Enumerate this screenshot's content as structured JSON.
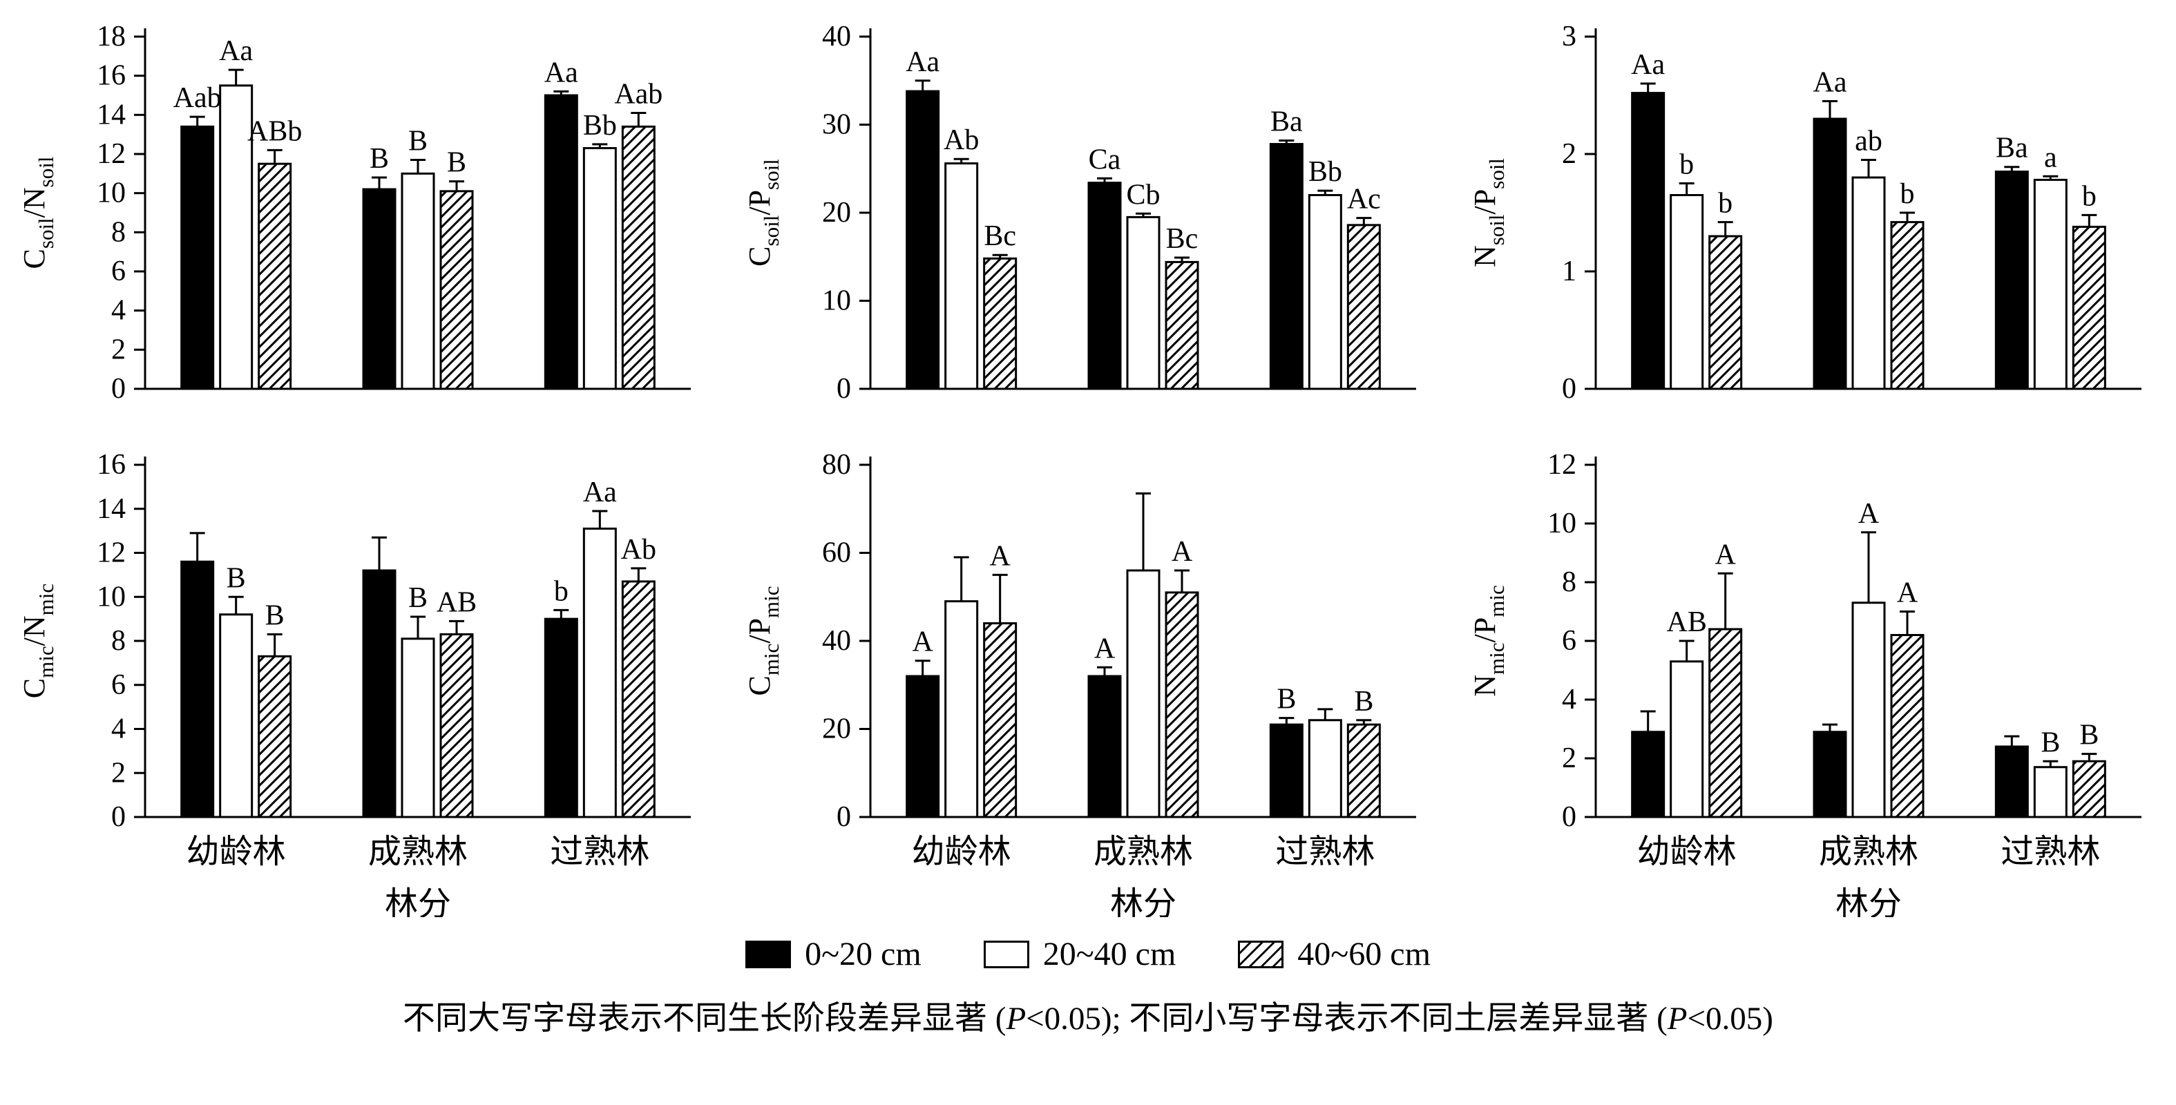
{
  "page": {
    "background": "#ffffff",
    "ink": "#000000"
  },
  "legend": {
    "items": [
      {
        "label": "0~20 cm",
        "style": "solid"
      },
      {
        "label": "20~40 cm",
        "style": "open"
      },
      {
        "label": "40~60 cm",
        "style": "hatch"
      }
    ]
  },
  "footnote": {
    "segments": [
      {
        "text": "不同大写字母表示不同生长阶段差异显著 ("
      },
      {
        "text": "P",
        "italic": true
      },
      {
        "text": "<0.05); 不同小写字母表示不同土层差异显著 ("
      },
      {
        "text": "P",
        "italic": true
      },
      {
        "text": "<0.05)"
      }
    ]
  },
  "chart_data": [
    {
      "type": "bar",
      "ylabel": "C_soil/N_soil",
      "ylim": [
        0,
        18
      ],
      "ytick_step": 2,
      "show_x_labels": false,
      "xlabel": "",
      "categories": [
        "幼龄林",
        "成熟林",
        "过熟林"
      ],
      "series": [
        {
          "name": "0~20 cm",
          "style": "solid",
          "values": [
            13.4,
            10.2,
            15.0
          ],
          "errors": [
            0.5,
            0.6,
            0.2
          ],
          "sig_labels": [
            "Aab",
            "B",
            "Aa"
          ]
        },
        {
          "name": "20~40 cm",
          "style": "open",
          "values": [
            15.5,
            11.0,
            12.3
          ],
          "errors": [
            0.8,
            0.7,
            0.2
          ],
          "sig_labels": [
            "Aa",
            "B",
            "Bb"
          ]
        },
        {
          "name": "40~60 cm",
          "style": "hatch",
          "values": [
            11.5,
            10.1,
            13.4
          ],
          "errors": [
            0.7,
            0.5,
            0.7
          ],
          "sig_labels": [
            "ABb",
            "B",
            "Aab"
          ]
        }
      ]
    },
    {
      "type": "bar",
      "ylabel": "C_soil/P_soil",
      "ylim": [
        0,
        40
      ],
      "ytick_step": 10,
      "show_x_labels": false,
      "xlabel": "",
      "categories": [
        "幼龄林",
        "成熟林",
        "过熟林"
      ],
      "series": [
        {
          "name": "0~20 cm",
          "style": "solid",
          "values": [
            33.8,
            23.4,
            27.8
          ],
          "errors": [
            1.2,
            0.5,
            0.4
          ],
          "sig_labels": [
            "Aa",
            "Ca",
            "Ba"
          ]
        },
        {
          "name": "20~40 cm",
          "style": "open",
          "values": [
            25.6,
            19.5,
            22.0
          ],
          "errors": [
            0.5,
            0.4,
            0.5
          ],
          "sig_labels": [
            "Ab",
            "Cb",
            "Bb"
          ]
        },
        {
          "name": "40~60 cm",
          "style": "hatch",
          "values": [
            14.8,
            14.4,
            18.6
          ],
          "errors": [
            0.4,
            0.5,
            0.8
          ],
          "sig_labels": [
            "Bc",
            "Bc",
            "Ac"
          ]
        }
      ]
    },
    {
      "type": "bar",
      "ylabel": "N_soil/P_soil",
      "ylim": [
        0,
        3
      ],
      "ytick_step": 1,
      "show_x_labels": false,
      "xlabel": "",
      "categories": [
        "幼龄林",
        "成熟林",
        "过熟林"
      ],
      "series": [
        {
          "name": "0~20 cm",
          "style": "solid",
          "values": [
            2.52,
            2.3,
            1.85
          ],
          "errors": [
            0.08,
            0.15,
            0.04
          ],
          "sig_labels": [
            "Aa",
            "Aa",
            "Ba"
          ]
        },
        {
          "name": "20~40 cm",
          "style": "open",
          "values": [
            1.65,
            1.8,
            1.78
          ],
          "errors": [
            0.1,
            0.15,
            0.03
          ],
          "sig_labels": [
            "b",
            "ab",
            "a"
          ]
        },
        {
          "name": "40~60 cm",
          "style": "hatch",
          "values": [
            1.3,
            1.42,
            1.38
          ],
          "errors": [
            0.12,
            0.08,
            0.1
          ],
          "sig_labels": [
            "b",
            "b",
            "b"
          ]
        }
      ]
    },
    {
      "type": "bar",
      "ylabel": "C_mic/N_mic",
      "ylim": [
        0,
        16
      ],
      "ytick_step": 2,
      "show_x_labels": true,
      "xlabel": "林分",
      "categories": [
        "幼龄林",
        "成熟林",
        "过熟林"
      ],
      "series": [
        {
          "name": "0~20 cm",
          "style": "solid",
          "values": [
            11.6,
            11.2,
            9.0
          ],
          "errors": [
            1.3,
            1.5,
            0.4
          ],
          "sig_labels": [
            "",
            "",
            "b"
          ]
        },
        {
          "name": "20~40 cm",
          "style": "open",
          "values": [
            9.2,
            8.1,
            13.1
          ],
          "errors": [
            0.8,
            1.0,
            0.8
          ],
          "sig_labels": [
            "B",
            "B",
            "Aa"
          ]
        },
        {
          "name": "40~60 cm",
          "style": "hatch",
          "values": [
            7.3,
            8.3,
            10.7
          ],
          "errors": [
            1.0,
            0.6,
            0.6
          ],
          "sig_labels": [
            "B",
            "AB",
            "Ab"
          ]
        }
      ]
    },
    {
      "type": "bar",
      "ylabel": "C_mic/P_mic",
      "ylim": [
        0,
        80
      ],
      "ytick_step": 20,
      "show_x_labels": true,
      "xlabel": "林分",
      "categories": [
        "幼龄林",
        "成熟林",
        "过熟林"
      ],
      "series": [
        {
          "name": "0~20 cm",
          "style": "solid",
          "values": [
            32,
            32,
            21
          ],
          "errors": [
            3.5,
            2.0,
            1.5
          ],
          "sig_labels": [
            "A",
            "A",
            "B"
          ]
        },
        {
          "name": "20~40 cm",
          "style": "open",
          "values": [
            49,
            56,
            22
          ],
          "errors": [
            10.0,
            17.5,
            2.5
          ],
          "sig_labels": [
            "",
            "",
            ""
          ]
        },
        {
          "name": "40~60 cm",
          "style": "hatch",
          "values": [
            44,
            51,
            21
          ],
          "errors": [
            11.0,
            5.0,
            1.0
          ],
          "sig_labels": [
            "A",
            "A",
            "B"
          ]
        }
      ]
    },
    {
      "type": "bar",
      "ylabel": "N_mic/P_mic",
      "ylim": [
        0,
        12
      ],
      "ytick_step": 2,
      "show_x_labels": true,
      "xlabel": "林分",
      "categories": [
        "幼龄林",
        "成熟林",
        "过熟林"
      ],
      "series": [
        {
          "name": "0~20 cm",
          "style": "solid",
          "values": [
            2.9,
            2.9,
            2.4
          ],
          "errors": [
            0.7,
            0.25,
            0.35
          ],
          "sig_labels": [
            "",
            "",
            ""
          ]
        },
        {
          "name": "20~40 cm",
          "style": "open",
          "values": [
            5.3,
            7.3,
            1.7
          ],
          "errors": [
            0.7,
            2.4,
            0.2
          ],
          "sig_labels": [
            "AB",
            "A",
            "B"
          ]
        },
        {
          "name": "40~60 cm",
          "style": "hatch",
          "values": [
            6.4,
            6.2,
            1.9
          ],
          "errors": [
            1.9,
            0.8,
            0.25
          ],
          "sig_labels": [
            "A",
            "A",
            "B"
          ]
        }
      ]
    }
  ]
}
